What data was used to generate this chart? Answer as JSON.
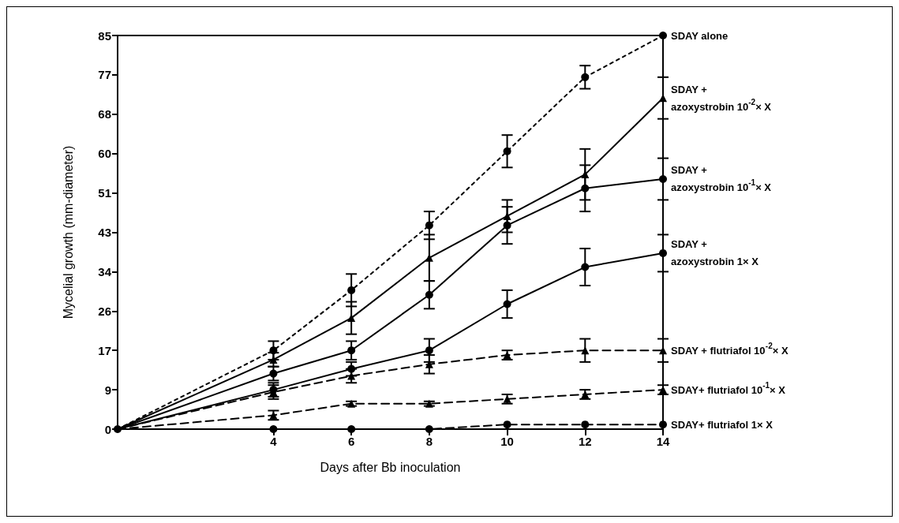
{
  "chart_data": {
    "type": "line",
    "xlabel": "Days after Bb inoculation",
    "ylabel": "Mycelial growth (mm-diameter)",
    "x": [
      0,
      4,
      6,
      8,
      10,
      12,
      14
    ],
    "xlim": [
      0,
      14
    ],
    "xticks": [
      4,
      6,
      8,
      10,
      12,
      14
    ],
    "ylim": [
      0,
      85
    ],
    "yticks": [
      0,
      {
        "value": 8.5,
        "label": "9"
      },
      17,
      {
        "value": 25.5,
        "label": "26"
      },
      34,
      {
        "value": 42.5,
        "label": "43"
      },
      51,
      {
        "value": 59.5,
        "label": "60"
      },
      68,
      {
        "value": 76.5,
        "label": "77"
      },
      85
    ],
    "grid": false,
    "legend": false,
    "series": [
      {
        "name": "SDAY alone",
        "color": "#000000",
        "marker": "circle",
        "line_style": "dotted",
        "values": [
          0,
          17,
          30,
          44,
          60,
          76,
          85
        ],
        "errors": [
          null,
          2,
          3.5,
          3,
          3.5,
          2.5,
          null
        ]
      },
      {
        "name": "SDAY +\nazoxystrobin 10$^{-2}$× X",
        "color": "#000000",
        "marker": "triangle",
        "line_style": "solid",
        "values": [
          0,
          15,
          24,
          37,
          46,
          55,
          71.5
        ],
        "errors": [
          null,
          1.5,
          3.5,
          5,
          3.5,
          5.5,
          4.5
        ]
      },
      {
        "name": "SDAY +\nazoxystrobin 10$^{-1}$× X",
        "color": "#000000",
        "marker": "circle",
        "line_style": "solid",
        "values": [
          0,
          12,
          17,
          29,
          44,
          52,
          54
        ],
        "errors": [
          null,
          1.5,
          2,
          3,
          4,
          5,
          4.5
        ]
      },
      {
        "name": "SDAY +\nazoxystrobin 1× X",
        "color": "#000000",
        "marker": "circle",
        "line_style": "solid",
        "values": [
          0,
          8.5,
          13,
          17,
          27,
          35,
          38
        ],
        "errors": [
          null,
          1.5,
          1.5,
          2.5,
          3,
          4,
          4
        ]
      },
      {
        "name": "SDAY + flutriafol 10$^{-2}$× X",
        "color": "#000000",
        "marker": "triangle",
        "line_style": "dashed",
        "values": [
          0,
          8,
          11.5,
          14,
          16,
          17,
          17
        ],
        "errors": [
          null,
          1.5,
          1.5,
          2,
          1,
          2.5,
          2.5
        ]
      },
      {
        "name": "SDAY+ flutriafol 10$^{-1}$× X",
        "color": "#000000",
        "marker": "triangle",
        "line_style": "dashed",
        "values": [
          0,
          3,
          5.5,
          5.5,
          6.5,
          7.5,
          8.5
        ],
        "errors": [
          null,
          1,
          0.5,
          0.5,
          1,
          1,
          1
        ]
      },
      {
        "name": "SDAY+ flutriafol 1× X",
        "color": "#000000",
        "marker": "circle",
        "line_style": "dashed",
        "values": [
          0,
          0,
          0,
          0,
          1,
          1,
          1
        ]
      }
    ]
  }
}
